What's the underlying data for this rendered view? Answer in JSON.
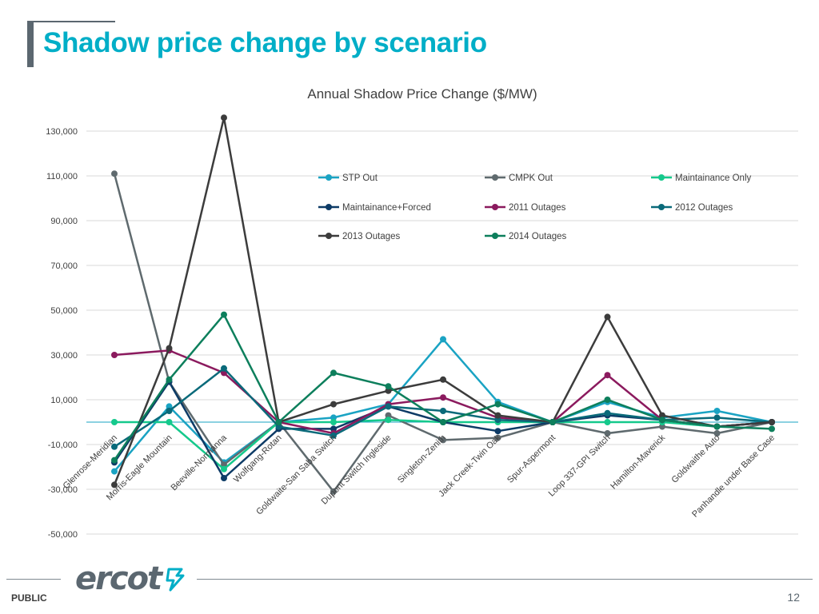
{
  "page": {
    "title": "Shadow price change by scenario",
    "classification": "PUBLIC",
    "page_number": "12",
    "logo_text": "ercot"
  },
  "chart_data": {
    "type": "line",
    "title": "Annual Shadow Price Change ($/MW)",
    "xlabel": "",
    "ylabel": "",
    "ylim": [
      -50000,
      130000
    ],
    "yticks": [
      130000,
      110000,
      90000,
      70000,
      50000,
      30000,
      10000,
      -10000,
      -30000,
      -50000
    ],
    "ytick_labels": [
      "130,000",
      "110,000",
      "90,000",
      "70,000",
      "50,000",
      "30,000",
      "10,000",
      "-10,000",
      "-30,000",
      "-50,000"
    ],
    "grid": true,
    "legend_position": "upper-right inside",
    "categories": [
      "Glenrose-Meridian",
      "Morris-Eagle Mountain",
      "Beeville-Normanna",
      "Wolfgang-Rotan",
      "Goldwaite-San Saba Switch",
      "Dupont Switch Ingleside",
      "Singleton-Zenith",
      "Jack Creek-Twin Oak",
      "Spur-Aspermont",
      "Loop 337-GPI Switch",
      "Hamilton-Maverick",
      "Goldwaithe Auto",
      "Panhandle under Base Case"
    ],
    "series": [
      {
        "name": "STP Out",
        "color": "#1aa3c3",
        "values": [
          -22000,
          7000,
          -18000,
          0,
          2000,
          8000,
          37000,
          9000,
          0,
          9000,
          2000,
          5000,
          0
        ]
      },
      {
        "name": "CMPK Out",
        "color": "#5f6a6e",
        "values": [
          111000,
          18000,
          -19000,
          0,
          -31000,
          3000,
          -8000,
          -7000,
          0,
          -5000,
          -2000,
          -5000,
          0
        ]
      },
      {
        "name": "Maintainance Only",
        "color": "#15c98c",
        "values": [
          0,
          0,
          -21000,
          0,
          0,
          1000,
          0,
          0,
          0,
          0,
          0,
          -2000,
          0
        ]
      },
      {
        "name": "Maintainance+Forced",
        "color": "#0d3b66",
        "values": [
          -18000,
          18000,
          -25000,
          -3000,
          -3000,
          7000,
          0,
          -4000,
          0,
          3000,
          1000,
          -2000,
          0
        ]
      },
      {
        "name": "2011 Outages",
        "color": "#8b1a5e",
        "values": [
          30000,
          32000,
          22000,
          0,
          -5000,
          8000,
          11000,
          2000,
          0,
          21000,
          1000,
          -2000,
          0
        ]
      },
      {
        "name": "2012 Outages",
        "color": "#0a6a7a",
        "values": [
          -11000,
          5000,
          24000,
          -2000,
          -6000,
          7000,
          5000,
          1000,
          0,
          4000,
          1000,
          2000,
          0
        ]
      },
      {
        "name": "2013 Outages",
        "color": "#3c3c3c",
        "values": [
          -28000,
          33000,
          136000,
          0,
          8000,
          14000,
          19000,
          3000,
          0,
          47000,
          3000,
          -2000,
          0
        ]
      },
      {
        "name": "2014 Outages",
        "color": "#0d7f5c",
        "values": [
          -17000,
          19000,
          48000,
          0,
          22000,
          16000,
          0,
          8000,
          0,
          10000,
          1000,
          -2000,
          -3000
        ]
      }
    ]
  }
}
